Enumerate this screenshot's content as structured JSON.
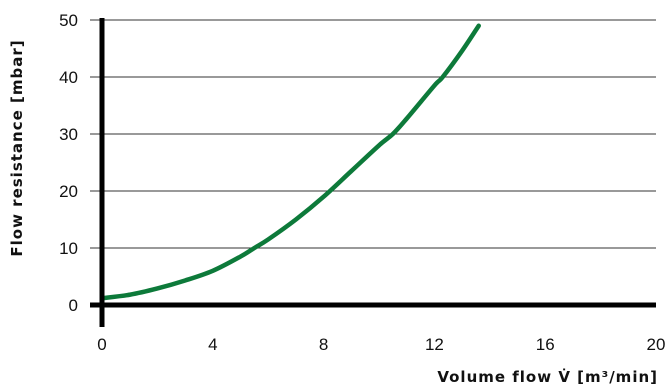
{
  "chart_data": {
    "type": "line",
    "title": "",
    "xlabel": "Volume flow V̇ [m³/min]",
    "ylabel": "Flow resistance [mbar]",
    "xlim": [
      0,
      20
    ],
    "ylim": [
      0,
      50
    ],
    "x_ticks": [
      "0",
      "4",
      "8",
      "12",
      "16",
      "20"
    ],
    "y_ticks": [
      "0",
      "10",
      "20",
      "30",
      "40",
      "50"
    ],
    "grid": "horizontal",
    "legend": "none",
    "series": [
      {
        "color": "#0d7a3a",
        "x": [
          0,
          1,
          2,
          3,
          4,
          5,
          5.5,
          6,
          7,
          8,
          9,
          10,
          10.5,
          11,
          12,
          12.3,
          13,
          13.6
        ],
        "y": [
          1.2,
          1.8,
          2.9,
          4.3,
          6.0,
          8.5,
          10,
          11.5,
          15.0,
          19.0,
          23.5,
          28.0,
          30,
          32.7,
          38.5,
          40,
          44.6,
          49.0
        ]
      }
    ]
  }
}
